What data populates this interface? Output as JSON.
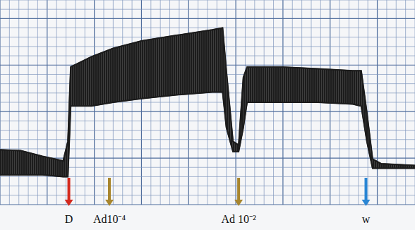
{
  "chart_data": {
    "type": "range",
    "x": [
      0,
      2.2,
      4.5,
      6.7,
      7.2,
      7.5,
      9.7,
      12.0,
      15.0,
      18.7,
      22.5,
      23.6,
      24.0,
      24.7,
      25.3,
      25.8,
      26.2,
      29.9,
      33.7,
      37.4,
      38.3,
      38.9,
      39.5,
      40.4,
      44.0
    ],
    "high": [
      5.9,
      5.8,
      5.2,
      4.7,
      6.8,
      14.8,
      15.9,
      16.8,
      17.6,
      18.2,
      18.8,
      19.0,
      14.4,
      6.8,
      6.4,
      13.7,
      14.8,
      14.8,
      14.6,
      14.4,
      14.4,
      9.9,
      4.9,
      4.4,
      4.2
    ],
    "low": [
      3.2,
      3.2,
      3.2,
      3.0,
      3.0,
      10.6,
      10.6,
      11.0,
      11.4,
      11.8,
      12.1,
      12.1,
      8.3,
      5.7,
      5.7,
      8.3,
      11.0,
      11.0,
      11.0,
      10.8,
      10.6,
      6.8,
      3.9,
      3.9,
      3.9
    ],
    "color": "#1c1c1c",
    "xlim": [
      0,
      44
    ],
    "ylim": [
      0,
      22
    ],
    "xticks": [
      0,
      1,
      2,
      3,
      4,
      5,
      6,
      7,
      8,
      9,
      10,
      11,
      12,
      13,
      14,
      15,
      16,
      17,
      18,
      19,
      20,
      21,
      22,
      23,
      24,
      25,
      26,
      27,
      28,
      29,
      30,
      31,
      32,
      33,
      34,
      35,
      36,
      37,
      38,
      39,
      40,
      41,
      42,
      43,
      44
    ],
    "yticks": [
      0,
      1,
      2,
      3,
      4,
      5,
      6,
      7,
      8,
      9,
      10,
      11,
      12,
      13,
      14,
      15,
      16,
      17,
      18,
      19,
      20,
      21,
      22
    ],
    "grid": true,
    "tick_labels": false,
    "annotations": [
      {
        "label": "D",
        "x": 7.3,
        "color": "#d42a1e"
      },
      {
        "label": "Ad10⁻⁴",
        "x": 11.6,
        "color": "#a8862e"
      },
      {
        "label": "Ad 10⁻²",
        "x": 25.3,
        "color": "#a8862e"
      },
      {
        "label": "w",
        "x": 38.8,
        "color": "#2a86d4"
      }
    ]
  }
}
